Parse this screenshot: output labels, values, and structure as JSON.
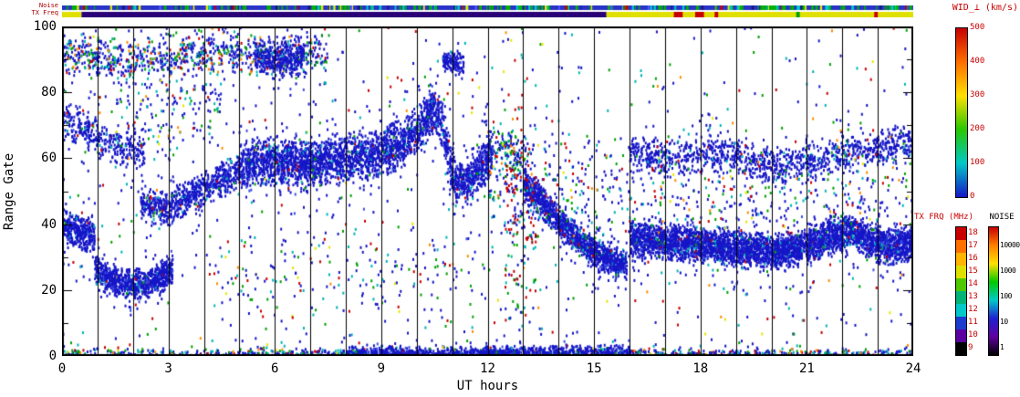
{
  "chart_data": {
    "type": "scatter",
    "plot_kind": "range-time parameter plot (radar summary, spectral width vs UT)",
    "xlabel": "UT hours",
    "ylabel": "Range Gate",
    "xlim": [
      0,
      24
    ],
    "ylim": [
      0,
      100
    ],
    "x_ticks": [
      0,
      3,
      6,
      9,
      12,
      15,
      18,
      21,
      24
    ],
    "y_ticks": [
      0,
      20,
      40,
      60,
      80,
      100
    ],
    "hour_gridlines": true,
    "seed": 77,
    "point_size": [
      2,
      3
    ],
    "palettes": {
      "dense": [
        [
          "#1616c8",
          0.9
        ],
        [
          "#3c50e6",
          0.05
        ],
        [
          "#00b4b4",
          0.03
        ],
        [
          "#00a000",
          0.01
        ],
        [
          "#c80000",
          0.01
        ]
      ],
      "sparse": [
        [
          "#1616c8",
          0.55
        ],
        [
          "#00b4b4",
          0.16
        ],
        [
          "#00a000",
          0.13
        ],
        [
          "#c80000",
          0.09
        ],
        [
          "#ff8c00",
          0.04
        ],
        [
          "#e6e600",
          0.03
        ]
      ],
      "topmix": [
        [
          "#1616c8",
          0.62
        ],
        [
          "#00b4b4",
          0.13
        ],
        [
          "#00a000",
          0.12
        ],
        [
          "#c80000",
          0.08
        ],
        [
          "#ff8c00",
          0.05
        ]
      ],
      "redcol": [
        [
          "#c80000",
          0.45
        ],
        [
          "#1616c8",
          0.25
        ],
        [
          "#00b4b4",
          0.15
        ],
        [
          "#00a000",
          0.15
        ]
      ]
    },
    "bands": [
      {
        "name": "dawn-high",
        "path": [
          [
            0,
            72
          ],
          [
            0.7,
            68
          ],
          [
            1.5,
            64
          ],
          [
            2.3,
            61
          ]
        ],
        "hw": 7,
        "pph": 160,
        "pal": "dense"
      },
      {
        "name": "dawn-mid",
        "path": [
          [
            0,
            40
          ],
          [
            0.5,
            38
          ],
          [
            0.9,
            36
          ]
        ],
        "hw": 6,
        "pph": 400,
        "pal": "dense"
      },
      {
        "name": "early-low",
        "path": [
          [
            0.9,
            27
          ],
          [
            1.4,
            23
          ],
          [
            2.0,
            22
          ],
          [
            2.6,
            23
          ],
          [
            3.1,
            27
          ]
        ],
        "hw": 5,
        "pph": 420,
        "pal": "dense"
      },
      {
        "name": "early-rise",
        "path": [
          [
            2.2,
            47
          ],
          [
            3.0,
            45
          ],
          [
            3.6,
            49
          ],
          [
            4.2,
            52
          ],
          [
            5.0,
            57
          ]
        ],
        "hw": 6,
        "pph": 260,
        "pal": "dense"
      },
      {
        "name": "main-band",
        "path": [
          [
            5,
            58
          ],
          [
            5.8,
            60
          ],
          [
            6.6,
            58
          ],
          [
            7.4,
            59
          ],
          [
            8.2,
            61
          ],
          [
            9.0,
            62
          ],
          [
            9.6,
            65
          ],
          [
            10.1,
            70
          ],
          [
            10.45,
            76
          ],
          [
            10.7,
            70
          ],
          [
            10.9,
            60
          ],
          [
            11.1,
            52
          ],
          [
            11.6,
            55
          ],
          [
            12.1,
            62
          ]
        ],
        "hw": 8,
        "pph": 430,
        "pal": "dense"
      },
      {
        "name": "noon-upper",
        "path": [
          [
            12.1,
            64
          ],
          [
            12.6,
            62
          ],
          [
            13.1,
            58
          ]
        ],
        "hw": 7,
        "pph": 120,
        "pal": "sparse"
      },
      {
        "name": "afternoon-descent",
        "path": [
          [
            13.0,
            53
          ],
          [
            13.5,
            47
          ],
          [
            14.0,
            41
          ],
          [
            14.6,
            35
          ],
          [
            15.2,
            30
          ],
          [
            15.9,
            28
          ]
        ],
        "hw": 5,
        "pph": 450,
        "pal": "dense"
      },
      {
        "name": "evening-band",
        "path": [
          [
            16,
            36
          ],
          [
            17,
            35
          ],
          [
            18,
            34
          ],
          [
            19,
            33
          ],
          [
            20,
            32
          ],
          [
            20.8,
            33
          ],
          [
            21.5,
            36
          ],
          [
            22.2,
            38
          ],
          [
            22.8,
            35
          ],
          [
            23.4,
            33
          ],
          [
            24,
            35
          ]
        ],
        "hw": 6,
        "pph": 500,
        "pal": "dense"
      },
      {
        "name": "evening-upper",
        "path": [
          [
            16,
            62
          ],
          [
            17.2,
            60
          ],
          [
            18.2,
            62
          ],
          [
            19.2,
            60
          ],
          [
            20.2,
            58
          ],
          [
            21.2,
            60
          ],
          [
            22.2,
            62
          ],
          [
            23.2,
            64
          ],
          [
            24,
            66
          ]
        ],
        "hw": 6,
        "pph": 140,
        "pal": "dense"
      },
      {
        "name": "morning-top",
        "path": [
          [
            0,
            93
          ],
          [
            1.5,
            90
          ],
          [
            3,
            92
          ],
          [
            4.5,
            93
          ],
          [
            6,
            91
          ],
          [
            7.5,
            92
          ]
        ],
        "hw": 7,
        "pph": 120,
        "pal": "topmix"
      },
      {
        "name": "top-cluster-5-7",
        "path": [
          [
            5.4,
            92
          ],
          [
            6.0,
            90
          ],
          [
            6.8,
            91
          ]
        ],
        "hw": 6,
        "pph": 260,
        "pal": "dense"
      },
      {
        "name": "top-cluster-11",
        "path": [
          [
            10.7,
            90
          ],
          [
            11.3,
            89
          ]
        ],
        "hw": 4,
        "pph": 220,
        "pal": "dense"
      },
      {
        "name": "bottom-row",
        "path": [
          [
            0,
            1
          ],
          [
            24,
            1
          ]
        ],
        "hw": 2,
        "pph": 40,
        "pal": "sparse"
      },
      {
        "name": "bottom-row-mid",
        "path": [
          [
            8,
            1
          ],
          [
            16,
            1.5
          ]
        ],
        "hw": 2.5,
        "pph": 120,
        "pal": "dense"
      },
      {
        "name": "midday-scatter",
        "path": [
          [
            12,
            50
          ],
          [
            16,
            50
          ]
        ],
        "hw": 22,
        "pph": 70,
        "pal": "sparse"
      },
      {
        "name": "red-column",
        "path": [
          [
            12.45,
            42
          ],
          [
            13.35,
            42
          ]
        ],
        "hw": 42,
        "pph": 180,
        "pal": "redcol"
      },
      {
        "name": "early-top-scatter",
        "path": [
          [
            1.5,
            75
          ],
          [
            4.5,
            78
          ]
        ],
        "hw": 18,
        "pph": 60,
        "pal": "sparse"
      },
      {
        "name": "evening-scatter",
        "path": [
          [
            16,
            50
          ],
          [
            24,
            50
          ]
        ],
        "hw": 20,
        "pph": 45,
        "pal": "sparse"
      },
      {
        "name": "prenoon-low-scatter",
        "path": [
          [
            4,
            25
          ],
          [
            12,
            25
          ]
        ],
        "hw": 20,
        "pph": 25,
        "pal": "sparse"
      }
    ],
    "uniform_noise": {
      "count": 700,
      "pal": "sparse"
    },
    "strips": {
      "noise_label": "Noise",
      "txfreq_label": "TX Freq",
      "noise_base": "#2a35c8",
      "noise_speckles": {
        "count": 260,
        "colors": [
          [
            "#00b400",
            0.5
          ],
          [
            "#00c8c8",
            0.2
          ],
          [
            "#1a1a80",
            0.12
          ],
          [
            "#e6e600",
            0.08
          ],
          [
            "#c80000",
            0.05
          ],
          [
            "#5050ff",
            0.05
          ]
        ]
      },
      "txfreq_segments": [
        {
          "t0": 0,
          "t1": 0.55,
          "color": "#e0e000"
        },
        {
          "t0": 0.55,
          "t1": 15.35,
          "color": "#2a0078"
        },
        {
          "t0": 15.35,
          "t1": 24,
          "color": "#e0e000"
        }
      ],
      "txfreq_marks": [
        {
          "t0": 17.25,
          "t1": 17.5,
          "color": "#c80000"
        },
        {
          "t0": 17.85,
          "t1": 18.1,
          "color": "#c80000"
        },
        {
          "t0": 18.4,
          "t1": 18.5,
          "color": "#c80000"
        },
        {
          "t0": 20.7,
          "t1": 20.8,
          "color": "#00a000"
        },
        {
          "t0": 22.9,
          "t1": 23.0,
          "color": "#c80000"
        }
      ]
    },
    "colorbars": [
      {
        "id": "wid",
        "title": "WID_⊥ (km/s)",
        "title_color": "#c80000",
        "units": "km/s",
        "range": [
          0,
          500
        ],
        "ticks": [
          500,
          400,
          300,
          200,
          100,
          0
        ],
        "tick_color": "#c80000",
        "gradient": [
          "#c80000",
          "#ff6e00",
          "#ffe000",
          "#28c800",
          "#00c8c8",
          "#1616c8"
        ]
      },
      {
        "id": "txfrq",
        "title": "TX FRQ (MHz)",
        "title_color": "#c80000",
        "units": "MHz",
        "ticks": [
          18,
          17,
          16,
          15,
          14,
          13,
          12,
          11,
          10,
          9
        ],
        "tick_color": "#c80000",
        "segments_top_to_bottom": [
          "#c80000",
          "#ff7000",
          "#ffb400",
          "#e0e000",
          "#50c800",
          "#00b478",
          "#00c8c8",
          "#1c3cd0",
          "#5a00a0",
          "#000000"
        ]
      },
      {
        "id": "noise",
        "title": "NOISE",
        "title_color": "#000000",
        "ticks": [
          10000,
          1000,
          100,
          10,
          1
        ],
        "tick_color": "#000000",
        "log_range": [
          -0.3,
          4.7
        ],
        "gradient": [
          "#c80000",
          "#ff8000",
          "#ffe000",
          "#00c800",
          "#00c8c8",
          "#2020d0",
          "#6000a0",
          "#000000"
        ]
      }
    ]
  }
}
